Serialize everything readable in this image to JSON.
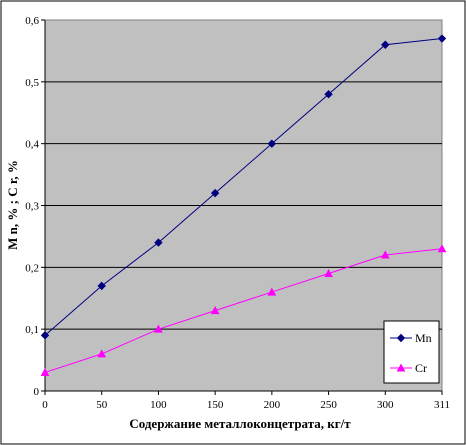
{
  "chart_data": {
    "type": "line",
    "x": [
      "0",
      "50",
      "100",
      "150",
      "200",
      "250",
      "300",
      "311"
    ],
    "series": [
      {
        "name": "Mn",
        "values": [
          0.09,
          0.17,
          0.24,
          0.32,
          0.4,
          0.48,
          0.56,
          0.57
        ],
        "color": "#000080",
        "marker": "diamond"
      },
      {
        "name": "Cr",
        "values": [
          0.03,
          0.06,
          0.1,
          0.13,
          0.16,
          0.19,
          0.22,
          0.23
        ],
        "color": "#ff00ff",
        "marker": "triangle"
      }
    ],
    "xlabel": "Содержание металлоконцетрата, кг/т",
    "ylabel": "M n,  % ;  C r, %",
    "ylim": [
      0,
      0.6
    ],
    "yticks": [
      "0",
      "0,1",
      "0,2",
      "0,3",
      "0,4",
      "0,5",
      "0,6"
    ],
    "grid": true,
    "plot_background": "#c0c0c0",
    "legend_position": "bottom-right"
  }
}
